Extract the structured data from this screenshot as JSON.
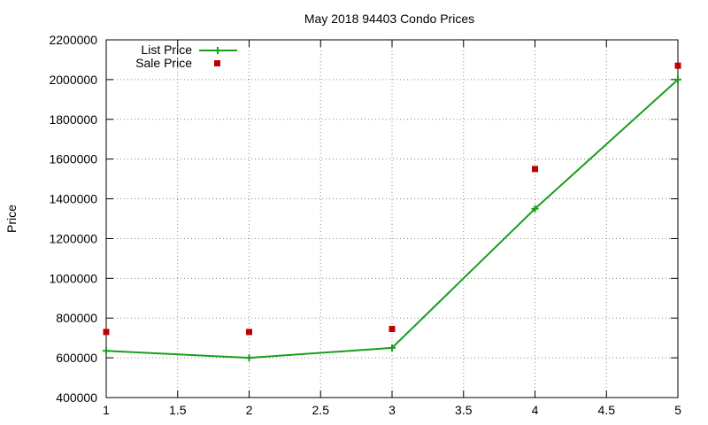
{
  "chart_data": {
    "type": "line",
    "title": "May 2018 94403 Condo Prices",
    "xlabel": "",
    "ylabel": "Price",
    "xlim": [
      1,
      5
    ],
    "ylim": [
      400000,
      2200000
    ],
    "xticks": [
      "1",
      "1.5",
      "2",
      "2.5",
      "3",
      "3.5",
      "4",
      "4.5",
      "5"
    ],
    "xtick_values": [
      1,
      1.5,
      2,
      2.5,
      3,
      3.5,
      4,
      4.5,
      5
    ],
    "yticks": [
      "400000",
      "600000",
      "800000",
      "1000000",
      "1200000",
      "1400000",
      "1600000",
      "1800000",
      "2000000",
      "2200000"
    ],
    "ytick_values": [
      400000,
      600000,
      800000,
      1000000,
      1200000,
      1400000,
      1600000,
      1800000,
      2000000,
      2200000
    ],
    "grid": true,
    "legend_position": "top-left",
    "series": [
      {
        "name": "List Price",
        "style": "line-points",
        "color": "#1a9e1a",
        "marker": "plus",
        "x": [
          1,
          2,
          3,
          4,
          5
        ],
        "y": [
          635000,
          600000,
          650000,
          1350000,
          2000000
        ]
      },
      {
        "name": "Sale Price",
        "style": "points",
        "color": "#c00000",
        "marker": "square",
        "x": [
          1,
          2,
          3,
          4,
          5
        ],
        "y": [
          730000,
          730000,
          745000,
          1550000,
          2070000
        ]
      }
    ]
  }
}
